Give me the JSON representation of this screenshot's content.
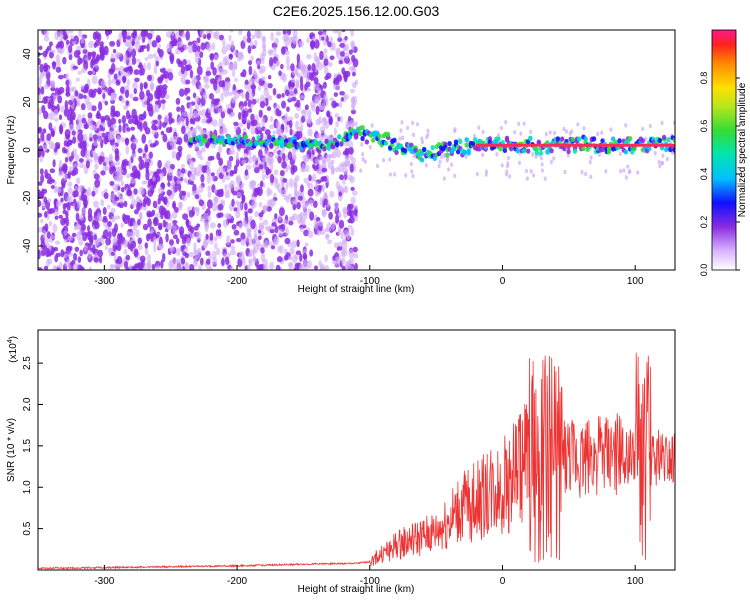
{
  "figure": {
    "title": "C2E6.2025.156.12.00.G03"
  },
  "colors": {
    "snr_line": "#ee3333",
    "carrier_line": "#ff2a55",
    "noise": "#8a2be2",
    "noise_light": "#cfa8f5"
  },
  "chart_data": [
    {
      "type": "heatmap",
      "title": "C2E6.2025.156.12.00.G03",
      "xlabel": "Height of straight line (km)",
      "ylabel": "Frequency (Hz)",
      "xlim": [
        -350,
        130
      ],
      "ylim": [
        -50,
        50
      ],
      "x_ticks": [
        -300,
        -200,
        -100,
        0,
        100
      ],
      "y_ticks": [
        -40,
        -20,
        0,
        20,
        40
      ],
      "x_tick_labels": [
        "-300",
        "-200",
        "-100",
        "0",
        "100"
      ],
      "y_tick_labels": [
        "-40",
        "-20",
        "0",
        "20",
        "40"
      ],
      "description_ridge": [
        [
          -235,
          4
        ],
        [
          -200,
          4
        ],
        [
          -160,
          3
        ],
        [
          -130,
          2
        ],
        [
          -110,
          7
        ],
        [
          -100,
          6
        ],
        [
          -80,
          2
        ],
        [
          -60,
          -2
        ],
        [
          -40,
          0
        ],
        [
          -20,
          2
        ],
        [
          0,
          2
        ],
        [
          20,
          2
        ],
        [
          50,
          2
        ],
        [
          100,
          2
        ],
        [
          130,
          2
        ]
      ],
      "colorbar": {
        "label": "Normalized spectral amplitude",
        "range": [
          0,
          1
        ],
        "ticks": [
          0.0,
          0.2,
          0.4,
          0.6,
          0.8
        ],
        "tick_labels": [
          "0.0",
          "0.2",
          "0.4",
          "0.6",
          "0.8"
        ]
      }
    },
    {
      "type": "line",
      "xlabel": "Height of straight line (km)",
      "ylabel": "SNR (10 * v/v)",
      "multiplier_label": "(x10",
      "multiplier_exp": "4",
      "multiplier_close": ")",
      "xlim": [
        -350,
        130
      ],
      "ylim": [
        0,
        2.9
      ],
      "x_ticks": [
        -300,
        -200,
        -100,
        0,
        100
      ],
      "y_ticks": [
        0.5,
        1.0,
        1.5,
        2.0,
        2.5
      ],
      "x_tick_labels": [
        "-300",
        "-200",
        "-100",
        "0",
        "100"
      ],
      "y_tick_labels": [
        "0.5",
        "1.0",
        "1.5",
        "2.0",
        "2.5"
      ],
      "series": [
        {
          "name": "SNR",
          "x": [
            -350,
            -300,
            -250,
            -200,
            -150,
            -110,
            -100,
            -90,
            -80,
            -70,
            -60,
            -50,
            -40,
            -30,
            -20,
            -10,
            0,
            10,
            20,
            30,
            40,
            50,
            60,
            70,
            80,
            90,
            100,
            105,
            110,
            120,
            130
          ],
          "y": [
            0.02,
            0.03,
            0.04,
            0.05,
            0.07,
            0.08,
            0.1,
            0.2,
            0.3,
            0.35,
            0.4,
            0.45,
            0.6,
            0.75,
            0.85,
            0.95,
            1.0,
            1.2,
            1.35,
            1.35,
            1.4,
            1.35,
            1.35,
            1.4,
            1.4,
            1.4,
            1.35,
            1.3,
            1.35,
            1.38,
            1.4
          ]
        }
      ]
    }
  ]
}
